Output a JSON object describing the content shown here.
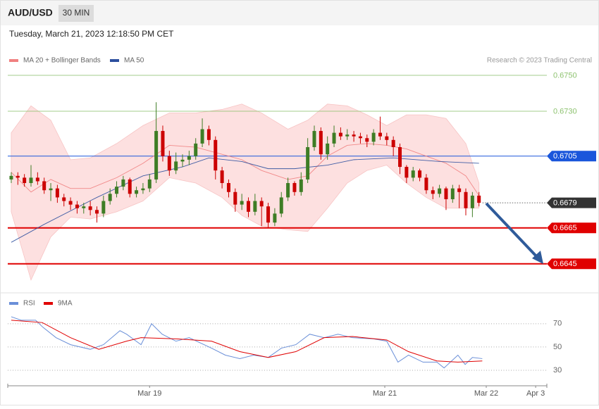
{
  "header": {
    "symbol": "AUD/USD",
    "interval": "30 MIN",
    "timestamp": "Tuesday, March 21, 2023 12:18:50 PM CET"
  },
  "source": "Research © 2023 Trading Central",
  "chart_data": [
    {
      "type": "candlestick",
      "xlim": [
        -0.53,
        81.3
      ],
      "ylim": [
        0.66312,
        0.67547
      ],
      "up_color": "#3e7d25",
      "down_color": "#cc0000",
      "ohlc": {
        "open": [
          0.6692,
          0.6694,
          0.6693,
          0.669,
          0.6693,
          0.6691,
          0.6686,
          0.6687,
          0.6682,
          0.668,
          0.6678,
          0.6676,
          0.6677,
          0.6675,
          0.6673,
          0.668,
          0.6684,
          0.6688,
          0.6692,
          0.6684,
          0.6686,
          0.6687,
          0.6692,
          0.6719,
          0.6705,
          0.6697,
          0.6702,
          0.6703,
          0.6705,
          0.6712,
          0.672,
          0.6714,
          0.6697,
          0.669,
          0.6685,
          0.6678,
          0.668,
          0.6674,
          0.668,
          0.6677,
          0.6668,
          0.6673,
          0.6682,
          0.669,
          0.6685,
          0.6692,
          0.671,
          0.6719,
          0.6706,
          0.6712,
          0.6718,
          0.6716,
          0.6717,
          0.6716,
          0.6715,
          0.6713,
          0.6718,
          0.6716,
          0.6714,
          0.671,
          0.6699,
          0.6693,
          0.6697,
          0.6693,
          0.6686,
          0.6684,
          0.6687,
          0.6681,
          0.6687,
          0.6685,
          0.6676,
          0.6683
        ],
        "high": [
          0.6696,
          0.6696,
          0.6695,
          0.67,
          0.6696,
          0.6693,
          0.669,
          0.6689,
          0.6684,
          0.6682,
          0.668,
          0.6679,
          0.668,
          0.6677,
          0.6683,
          0.6687,
          0.6691,
          0.6694,
          0.6693,
          0.6688,
          0.669,
          0.6695,
          0.6735,
          0.6722,
          0.6708,
          0.6707,
          0.6706,
          0.6708,
          0.6715,
          0.6726,
          0.6722,
          0.6716,
          0.6699,
          0.6692,
          0.6687,
          0.6684,
          0.6682,
          0.6684,
          0.6682,
          0.6679,
          0.6676,
          0.6685,
          0.6693,
          0.6691,
          0.6696,
          0.6715,
          0.6722,
          0.6721,
          0.6716,
          0.6722,
          0.6721,
          0.672,
          0.6719,
          0.6718,
          0.6717,
          0.672,
          0.6727,
          0.6718,
          0.6716,
          0.6712,
          0.67,
          0.6699,
          0.6698,
          0.6695,
          0.6688,
          0.6689,
          0.6688,
          0.6689,
          0.6689,
          0.6687,
          0.6685,
          0.6685
        ],
        "low": [
          0.669,
          0.6689,
          0.6688,
          0.6688,
          0.6689,
          0.6684,
          0.668,
          0.6679,
          0.6677,
          0.6675,
          0.6673,
          0.6673,
          0.6672,
          0.6668,
          0.6671,
          0.6678,
          0.6682,
          0.6686,
          0.6682,
          0.6682,
          0.6684,
          0.6685,
          0.669,
          0.6702,
          0.6694,
          0.6695,
          0.6699,
          0.67,
          0.6703,
          0.671,
          0.6711,
          0.6692,
          0.6687,
          0.6682,
          0.6674,
          0.6675,
          0.6671,
          0.6672,
          0.6666,
          0.6665,
          0.6666,
          0.6671,
          0.668,
          0.6683,
          0.6683,
          0.669,
          0.6708,
          0.6703,
          0.6703,
          0.671,
          0.6714,
          0.6714,
          0.6713,
          0.6712,
          0.671,
          0.6711,
          0.6714,
          0.6711,
          0.6705,
          0.6695,
          0.669,
          0.6691,
          0.6691,
          0.6684,
          0.6681,
          0.6682,
          0.6675,
          0.6679,
          0.6676,
          0.6672,
          0.6671,
          0.6677
        ],
        "close": [
          0.6694,
          0.6693,
          0.669,
          0.6693,
          0.6691,
          0.6686,
          0.6687,
          0.6682,
          0.668,
          0.6678,
          0.6676,
          0.6677,
          0.6675,
          0.6673,
          0.668,
          0.6684,
          0.6688,
          0.6692,
          0.6684,
          0.6686,
          0.6687,
          0.6692,
          0.6719,
          0.6705,
          0.6697,
          0.6702,
          0.6703,
          0.6705,
          0.6712,
          0.672,
          0.6714,
          0.6697,
          0.669,
          0.6685,
          0.6678,
          0.668,
          0.6674,
          0.668,
          0.6677,
          0.6668,
          0.6673,
          0.6682,
          0.669,
          0.6685,
          0.6692,
          0.671,
          0.6719,
          0.6706,
          0.6712,
          0.6718,
          0.6716,
          0.6717,
          0.6716,
          0.6715,
          0.6713,
          0.6718,
          0.6716,
          0.6714,
          0.671,
          0.6699,
          0.6693,
          0.6697,
          0.6693,
          0.6686,
          0.6684,
          0.6687,
          0.6681,
          0.6687,
          0.6685,
          0.6676,
          0.6683,
          0.6679
        ]
      },
      "overlays": [
        {
          "name": "MA 20 + Bollinger Bands",
          "color": "#f08080",
          "band_color": "#fde0e0",
          "x": [
            0,
            3,
            6,
            9,
            12,
            16,
            20,
            24,
            28,
            32,
            35,
            38,
            42,
            45,
            48,
            51,
            54,
            57,
            60,
            63,
            66,
            69,
            71
          ],
          "values": [
            0.6696,
            0.6685,
            0.6692,
            0.6687,
            0.6687,
            0.6693,
            0.6701,
            0.6711,
            0.671,
            0.6706,
            0.6703,
            0.6697,
            0.6692,
            0.6694,
            0.6705,
            0.6711,
            0.6712,
            0.6711,
            0.6709,
            0.6705,
            0.6701,
            0.6694,
            0.6683
          ],
          "upper": [
            0.6718,
            0.6733,
            0.6725,
            0.6703,
            0.6704,
            0.6712,
            0.6722,
            0.6729,
            0.6729,
            0.6731,
            0.6734,
            0.6729,
            0.672,
            0.6725,
            0.6734,
            0.6733,
            0.6728,
            0.6722,
            0.6728,
            0.6728,
            0.6726,
            0.6712,
            0.669
          ],
          "lower": [
            0.6674,
            0.6636,
            0.666,
            0.6671,
            0.667,
            0.6674,
            0.668,
            0.6693,
            0.669,
            0.6682,
            0.6672,
            0.6666,
            0.6664,
            0.6663,
            0.6676,
            0.669,
            0.6697,
            0.67,
            0.669,
            0.6682,
            0.6676,
            0.6676,
            0.6676
          ]
        },
        {
          "name": "MA 50",
          "color": "#2c4f9e",
          "x": [
            0,
            5,
            13,
            20,
            26,
            30,
            35,
            39,
            43,
            48,
            52,
            58,
            65,
            71
          ],
          "values": [
            0.6657,
            0.6667,
            0.6682,
            0.6694,
            0.6699,
            0.6704,
            0.6702,
            0.6698,
            0.6698,
            0.67,
            0.6703,
            0.6704,
            0.6702,
            0.6701
          ]
        }
      ],
      "levels": [
        {
          "value": 0.675,
          "label": "0.6750",
          "color": "#8dc26f",
          "line": "solid",
          "width": 1,
          "box": false
        },
        {
          "value": 0.673,
          "label": "0.6730",
          "color": "#8dc26f",
          "line": "solid",
          "width": 1,
          "box": false
        },
        {
          "value": 0.6705,
          "label": "0.6705",
          "color": "#1a56db",
          "line": "solid",
          "width": 1,
          "box": true
        },
        {
          "value": 0.6679,
          "label": "0.6679",
          "color": "#333333",
          "line": "dotted",
          "width": 1,
          "box": true
        },
        {
          "value": 0.6665,
          "label": "0.6665",
          "color": "#e00000",
          "line": "solid",
          "width": 2,
          "box": true
        },
        {
          "value": 0.6645,
          "label": "0.6645",
          "color": "#e00000",
          "line": "solid",
          "width": 2,
          "box": true
        }
      ]
    },
    {
      "type": "line",
      "xlim": [
        -0.53,
        81.3
      ],
      "ylim": [
        20,
        82
      ],
      "yticks": [
        70,
        50,
        30
      ],
      "grid": true,
      "xticks": [
        {
          "value": 21,
          "label": "Mar 19"
        },
        {
          "value": 56.7,
          "label": "Mar 21"
        },
        {
          "value": 72.1,
          "label": "Mar 22"
        },
        {
          "value": 79.6,
          "label": "Apr 3"
        }
      ],
      "series": [
        {
          "name": "RSI",
          "color": "#6a8fd8",
          "x": [
            0,
            1.5,
            3.7,
            4.8,
            6.8,
            9,
            12,
            14,
            16.5,
            17.5,
            19.7,
            21.3,
            22.9,
            25,
            27,
            30.4,
            32.5,
            34.7,
            36.8,
            39,
            41,
            43.2,
            45.3,
            47.5,
            49.6,
            51.8,
            55,
            57,
            58.7,
            60.3,
            62.5,
            64.6,
            65.7,
            67.8,
            68.9,
            70,
            71.5
          ],
          "values": [
            76,
            73,
            73,
            67,
            58,
            52,
            48,
            52,
            64,
            61,
            52,
            70,
            61,
            55,
            58,
            49,
            43,
            40,
            43,
            41,
            49,
            52,
            61,
            58,
            61,
            58,
            57,
            55,
            37,
            43,
            37,
            37,
            32,
            43,
            35,
            41,
            40
          ]
        },
        {
          "name": "9MA",
          "color": "#e00000",
          "x": [
            0,
            4.7,
            9,
            13.3,
            17.5,
            19.7,
            25,
            30.4,
            34.7,
            39,
            43.2,
            47.5,
            51.8,
            57,
            60.3,
            64.6,
            67.8,
            71.5
          ],
          "values": [
            73,
            71,
            58,
            48,
            55,
            58,
            57,
            55,
            46,
            41,
            46,
            58,
            59,
            56,
            46,
            38,
            37,
            38
          ]
        }
      ]
    }
  ]
}
